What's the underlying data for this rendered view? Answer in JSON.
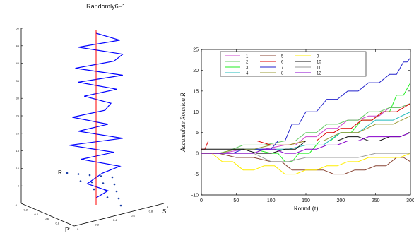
{
  "left_panel": {
    "title": "Randomly6−1",
    "z_ticks": [
      "5",
      "10",
      "15",
      "20",
      "25",
      "30",
      "35",
      "40",
      "45",
      "50"
    ],
    "p_ticks": [
      "0",
      "0.2",
      "0.4",
      "0.6",
      "0.8",
      "1"
    ],
    "s_ticks": [
      "0",
      "0.2",
      "0.4",
      "0.6",
      "0.8",
      "1"
    ],
    "axis_letters": {
      "r": "R",
      "s": "S",
      "p": "P"
    }
  },
  "chart_data": [
    {
      "type": "line3d",
      "title": "Randomly6−1",
      "zlim": [
        0,
        50
      ],
      "series": [
        {
          "color": "#0000ff",
          "points_z": [
            2,
            4,
            6,
            9,
            11,
            13,
            15,
            17,
            19,
            21,
            23,
            25,
            27,
            29,
            31,
            33,
            35,
            37,
            39,
            41,
            43,
            45,
            47,
            49
          ],
          "points_dx": [
            0,
            0.4,
            -0.3,
            0.2,
            0.8,
            -0.5,
            0.6,
            -0.9,
            0.9,
            -0.6,
            0.4,
            -0.8,
            0.3,
            0.5,
            -0.4,
            0.7,
            -0.6,
            0.9,
            -0.7,
            0.6,
            0.9,
            -0.6,
            0.8,
            0.0
          ]
        },
        {
          "color": "#ff0000",
          "points_z": [
            0,
            50
          ],
          "points_dx": [
            0,
            0
          ]
        }
      ]
    },
    {
      "type": "line",
      "xlabel": "Round (t)",
      "ylabel": "Accumulate Rotation R",
      "xlim": [
        0,
        300
      ],
      "ylim": [
        -10,
        25
      ],
      "xticks": [
        0,
        50,
        100,
        150,
        200,
        250,
        300
      ],
      "yticks": [
        -10,
        -5,
        0,
        5,
        10,
        15,
        20,
        25
      ],
      "legend": "top-left",
      "series": [
        {
          "name": "1",
          "color": "#cc44cc",
          "x": [
            0,
            60,
            120,
            150,
            180,
            210,
            240,
            270,
            300
          ],
          "y": [
            0,
            1,
            2,
            4,
            6,
            8,
            9,
            11,
            12
          ]
        },
        {
          "name": "2",
          "color": "#66cc66",
          "x": [
            0,
            60,
            120,
            150,
            180,
            210,
            240,
            270,
            300
          ],
          "y": [
            0,
            2,
            3,
            5,
            7,
            8,
            10,
            11,
            12
          ]
        },
        {
          "name": "3",
          "color": "#22ee22",
          "x": [
            0,
            50,
            100,
            120,
            140,
            170,
            200,
            230,
            260,
            280,
            300
          ],
          "y": [
            0,
            1,
            0,
            -2,
            0,
            3,
            5,
            8,
            10,
            14,
            17
          ]
        },
        {
          "name": "4",
          "color": "#22bbbb",
          "x": [
            0,
            50,
            100,
            150,
            200,
            250,
            300
          ],
          "y": [
            0,
            1,
            1,
            2,
            5,
            8,
            10
          ]
        },
        {
          "name": "5",
          "color": "#884433",
          "x": [
            0,
            50,
            100,
            130,
            160,
            190,
            220,
            250,
            280,
            300
          ],
          "y": [
            0,
            -1,
            -2,
            -4,
            -4,
            -5,
            -4,
            -3,
            -1,
            -2
          ]
        },
        {
          "name": "6",
          "color": "#dd0000",
          "x": [
            0,
            10,
            60,
            100,
            150,
            180,
            200,
            230,
            260,
            300
          ],
          "y": [
            1,
            3,
            3,
            2,
            3,
            5,
            6,
            8,
            10,
            12
          ]
        },
        {
          "name": "7",
          "color": "#2222cc",
          "x": [
            0,
            30,
            60,
            90,
            110,
            130,
            150,
            180,
            210,
            240,
            270,
            290,
            300
          ],
          "y": [
            0,
            0,
            1,
            1,
            3,
            7,
            10,
            13,
            15,
            17,
            19,
            22,
            23
          ]
        },
        {
          "name": "8",
          "color": "#999933",
          "x": [
            0,
            50,
            100,
            150,
            200,
            250,
            300
          ],
          "y": [
            0,
            1,
            2,
            3,
            5,
            7,
            9
          ]
        },
        {
          "name": "9",
          "color": "#ffee00",
          "x": [
            0,
            30,
            60,
            90,
            120,
            150,
            180,
            210,
            240,
            270,
            300
          ],
          "y": [
            0,
            -2,
            -4,
            -3,
            -5,
            -4,
            -3,
            -2,
            -1,
            -1,
            0
          ]
        },
        {
          "name": "10",
          "color": "#111111",
          "x": [
            0,
            40,
            80,
            120,
            150,
            180,
            210,
            240,
            270,
            300
          ],
          "y": [
            1,
            1,
            0,
            1,
            3,
            3,
            4,
            3,
            4,
            5
          ]
        },
        {
          "name": "11",
          "color": "#999999",
          "x": [
            0,
            50,
            100,
            150,
            200,
            250,
            300
          ],
          "y": [
            0,
            0,
            -2,
            -1,
            -1,
            0,
            0
          ]
        },
        {
          "name": "12",
          "color": "#8800cc",
          "x": [
            0,
            30,
            60,
            90,
            120,
            150,
            180,
            210,
            240,
            270,
            300
          ],
          "y": [
            0,
            0,
            0,
            1,
            0,
            1,
            2,
            3,
            4,
            4,
            5
          ]
        }
      ]
    }
  ]
}
